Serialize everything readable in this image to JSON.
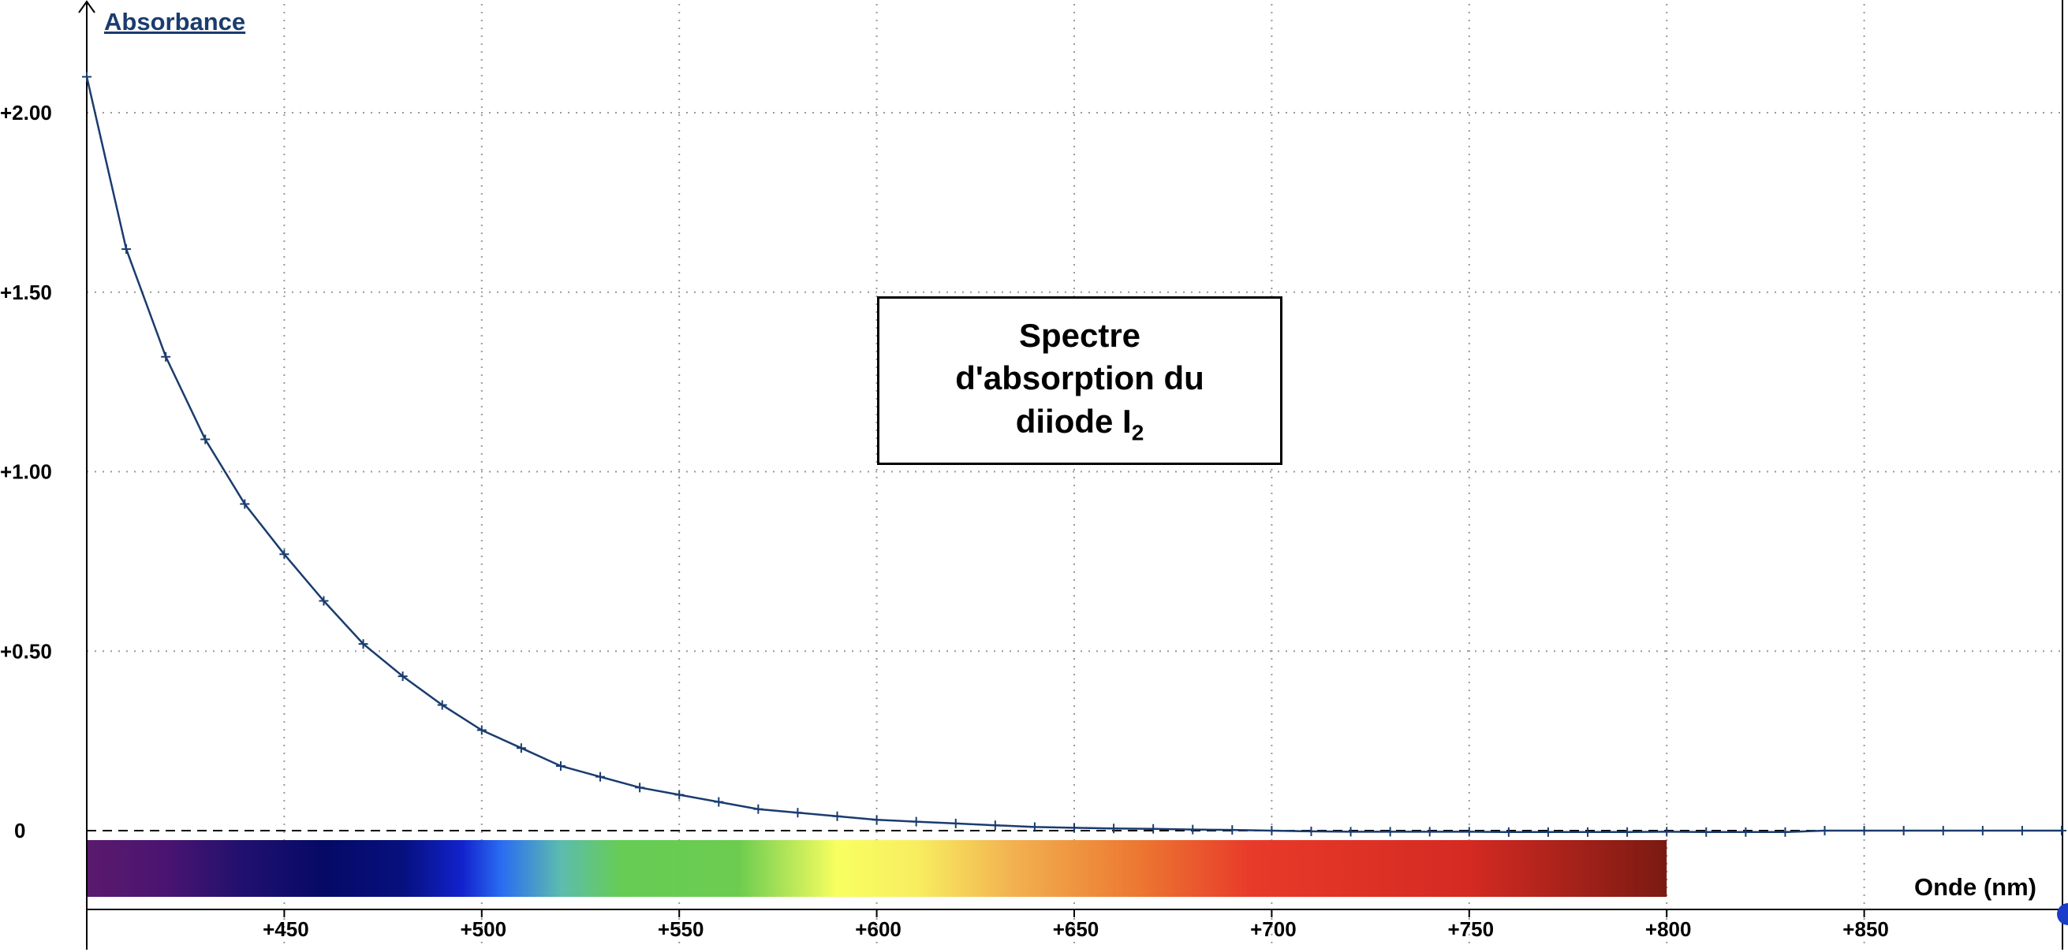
{
  "chart_data": {
    "type": "line",
    "title": "Spectre d'absorption du diiode I",
    "title_lines": [
      "Spectre",
      "d'absorption du",
      "diiode I"
    ],
    "title_subscript": "2",
    "ylabel": "Absorbance",
    "xlabel": "Onde (nm)",
    "xlim": [
      400,
      900
    ],
    "ylim": [
      -0.22,
      2.2
    ],
    "x_ticks": [
      450,
      500,
      550,
      600,
      650,
      700,
      750,
      800,
      850
    ],
    "x_tick_labels": [
      "+450",
      "+500",
      "+550",
      "+600",
      "+650",
      "+700",
      "+750",
      "+800",
      "+850"
    ],
    "y_ticks": [
      0,
      0.5,
      1.0,
      1.5,
      2.0
    ],
    "y_tick_labels": [
      "0",
      "+0.50",
      "+1.00",
      "+1.50",
      "+2.00"
    ],
    "grid": true,
    "grid_style": "dotted",
    "zero_line": "dashed",
    "series": [
      {
        "x": [
          400,
          410,
          420,
          430,
          440,
          450,
          460,
          470,
          480,
          490,
          500,
          510,
          520,
          530,
          540,
          550,
          560,
          570,
          580,
          590,
          600,
          610,
          620,
          630,
          640,
          650,
          660,
          670,
          680,
          690,
          700,
          710,
          720,
          730,
          740,
          750,
          760,
          770,
          780,
          790,
          800,
          810,
          820,
          830,
          840,
          850,
          860,
          870,
          880,
          890,
          900
        ],
        "y": [
          2.1,
          1.62,
          1.32,
          1.09,
          0.91,
          0.77,
          0.64,
          0.52,
          0.43,
          0.35,
          0.28,
          0.23,
          0.18,
          0.15,
          0.12,
          0.1,
          0.08,
          0.06,
          0.05,
          0.04,
          0.03,
          0.025,
          0.02,
          0.015,
          0.01,
          0.008,
          0.006,
          0.005,
          0.003,
          0.002,
          0.0,
          -0.002,
          -0.003,
          -0.003,
          -0.003,
          -0.003,
          -0.004,
          -0.004,
          -0.004,
          -0.004,
          -0.003,
          -0.004,
          -0.004,
          -0.004,
          0.0,
          0.0,
          0.0,
          0.0,
          0.0,
          0.0,
          0.0
        ]
      }
    ],
    "spectrum_band": {
      "x_range": [
        400,
        800
      ],
      "stops": [
        {
          "x": 400,
          "color": "#5a1a6e"
        },
        {
          "x": 420,
          "color": "#4a1470"
        },
        {
          "x": 440,
          "color": "#20106e"
        },
        {
          "x": 460,
          "color": "#050a66"
        },
        {
          "x": 480,
          "color": "#06107e"
        },
        {
          "x": 495,
          "color": "#1222cc"
        },
        {
          "x": 505,
          "color": "#2a6cf2"
        },
        {
          "x": 520,
          "color": "#5cbcae"
        },
        {
          "x": 535,
          "color": "#66cc55"
        },
        {
          "x": 565,
          "color": "#6ccc50"
        },
        {
          "x": 590,
          "color": "#f8ff60"
        },
        {
          "x": 610,
          "color": "#f8ee60"
        },
        {
          "x": 635,
          "color": "#f2b050"
        },
        {
          "x": 665,
          "color": "#ec7a32"
        },
        {
          "x": 695,
          "color": "#e83a2a"
        },
        {
          "x": 750,
          "color": "#d42a22"
        },
        {
          "x": 800,
          "color": "#7a1a12"
        }
      ]
    },
    "colors": {
      "line": "#1a3c6e",
      "grid": "#999999",
      "axis": "#000000",
      "accent_dot": "#1a3cc8"
    }
  }
}
